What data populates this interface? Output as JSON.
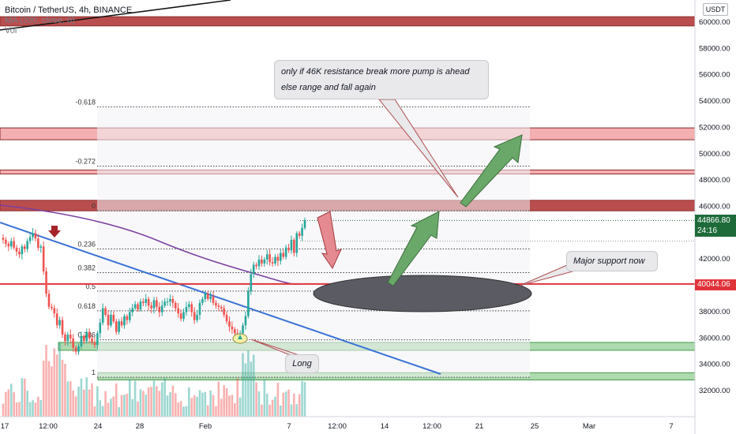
{
  "header": {
    "symbol_line": "Bitcoin / TetherUS, 4h, BINANCE",
    "ma_line": "MA (200, close, 0)",
    "vol_line": "Vol",
    "currency": "USDT"
  },
  "colors": {
    "up_candle": "#26a69a",
    "down_candle": "#ef5350",
    "ma200": "#7b3fa0",
    "trendline": "#3b73d6",
    "resistance_dark": "#b23b3b",
    "resistance_light": "#f3a6a8",
    "support_zone": "#9fd3a0",
    "support_line": "#e0343b",
    "price_tag": "#1e6b3a",
    "ellipse": "#5a5b63"
  },
  "annotations": {
    "top_note_line1": "only if 46K resistance break more pump is ahead",
    "top_note_line2": "else range and fall again",
    "support_note": "Major support now",
    "long_note": "Long"
  },
  "price_tags": {
    "current_price": "44866.80",
    "countdown": "24:16",
    "support_price": "40044.06"
  },
  "chart_data": {
    "type": "candlestick",
    "title": "Bitcoin / TetherUS, 4h, BINANCE",
    "xlabel": "",
    "ylabel": "USDT",
    "ylim": [
      30500,
      61200
    ],
    "y_ticks": [
      32000,
      34000,
      36000,
      38000,
      40000,
      42000,
      44000,
      46000,
      48000,
      50000,
      52000,
      54000,
      56000,
      58000,
      60000
    ],
    "x_tick_labels": [
      "17",
      "12:00",
      "24",
      "28",
      "Feb",
      "7",
      "12:00",
      "14",
      "12:00",
      "21",
      "25",
      "Mar",
      "7"
    ],
    "grid": false,
    "key_prices": [
      {
        "price": 44866.8,
        "label": "44866.80"
      },
      {
        "price": 40044.06,
        "label": "40044.06"
      }
    ],
    "zones": [
      {
        "kind": "resistance",
        "from": 59650,
        "to": 60350
      },
      {
        "kind": "resistance-light",
        "from": 51000,
        "to": 51900
      },
      {
        "kind": "resistance-light",
        "from": 48400,
        "to": 48700
      },
      {
        "kind": "resistance",
        "from": 45600,
        "to": 46400
      },
      {
        "kind": "support",
        "from": 35000,
        "to": 35600
      },
      {
        "kind": "support",
        "from": 32750,
        "to": 33300
      }
    ],
    "fib_levels": [
      {
        "ratio": "-0.618",
        "price": 53500
      },
      {
        "ratio": "-0.272",
        "price": 49000
      },
      {
        "ratio": "0",
        "price": 45600
      },
      {
        "ratio": "0.236",
        "price": 42700
      },
      {
        "ratio": "0.382",
        "price": 40900
      },
      {
        "ratio": "0.5",
        "price": 39500
      },
      {
        "ratio": "0.618",
        "price": 38000
      },
      {
        "ratio": "0.786",
        "price": 35800
      },
      {
        "ratio": "1",
        "price": 32950
      }
    ],
    "ohlc_path_close": [
      43400,
      43100,
      42900,
      43300,
      42800,
      42500,
      42300,
      42900,
      42700,
      43300,
      43600,
      43900,
      43500,
      42800,
      42900,
      41000,
      39300,
      38300,
      38200,
      37800,
      36900,
      37300,
      36200,
      35700,
      36200,
      35900,
      35200,
      34900,
      35300,
      36100,
      35700,
      36400,
      35900,
      35600,
      35400,
      36300,
      37100,
      38200,
      37700,
      36900,
      37700,
      37200,
      36400,
      37200,
      36900,
      37600,
      37300,
      37900,
      38200,
      38500,
      38100,
      38700,
      38600,
      38900,
      38400,
      38200,
      38800,
      38300,
      37900,
      38400,
      38700,
      38700,
      38900,
      38600,
      38200,
      37800,
      37400,
      37900,
      38300,
      38500,
      37900,
      37300,
      37700,
      38600,
      38900,
      39300,
      38900,
      39100,
      38600,
      38400,
      38300,
      38200,
      37700,
      37200,
      36800,
      36600,
      36300,
      36100,
      36300,
      36900,
      37600,
      39500,
      40800,
      41500,
      41400,
      41900,
      41600,
      41900,
      42300,
      41700,
      41600,
      42100,
      41800,
      42400,
      42100,
      42800,
      42600,
      43400,
      42400,
      43900,
      43700,
      44300,
      44900
    ]
  }
}
